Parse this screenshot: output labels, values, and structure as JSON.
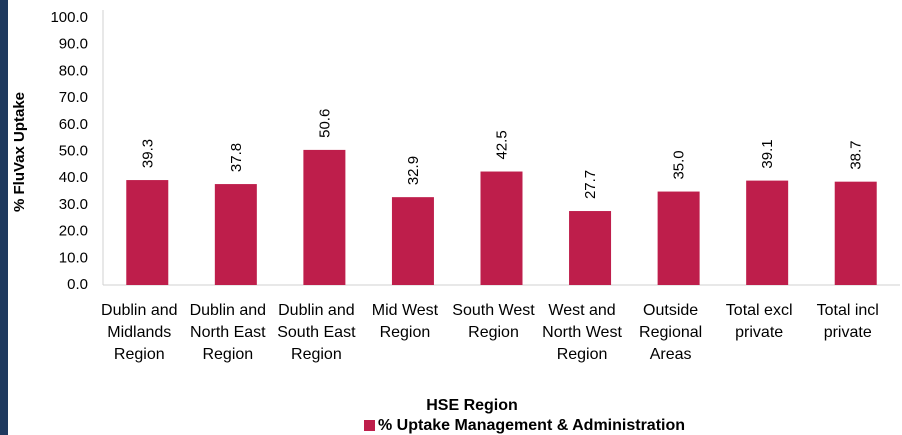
{
  "chart_data": {
    "type": "bar",
    "categories": [
      "Dublin and Midlands Region",
      "Dublin and North East Region",
      "Dublin and South East Region",
      "Mid West Region",
      "South West Region",
      "West and North West Region",
      "Outside Regional Areas",
      "Total excl private",
      "Total incl private"
    ],
    "series": [
      {
        "name": "% Uptake Management & Administration",
        "color": "#be1e4b",
        "values": [
          39.3,
          37.8,
          50.6,
          32.9,
          42.5,
          27.7,
          35.0,
          39.1,
          38.7
        ],
        "value_labels": [
          "39.3",
          "37.8",
          "50.6",
          "32.9",
          "42.5",
          "27.7",
          "35.0",
          "39.1",
          "38.7"
        ]
      }
    ],
    "xlabel": "HSE Region",
    "ylabel": "% FluVax Uptake",
    "ylim": [
      0,
      100
    ],
    "yticks": [
      {
        "value": 0,
        "label": "0.0"
      },
      {
        "value": 10,
        "label": "10.0"
      },
      {
        "value": 20,
        "label": "20.0"
      },
      {
        "value": 30,
        "label": "30.0"
      },
      {
        "value": 40,
        "label": "40.0"
      },
      {
        "value": 50,
        "label": "50.0"
      },
      {
        "value": 60,
        "label": "60.0"
      },
      {
        "value": 70,
        "label": "70.0"
      },
      {
        "value": 80,
        "label": "80.0"
      },
      {
        "value": 90,
        "label": "90.0"
      },
      {
        "value": 100,
        "label": "100.0"
      }
    ],
    "grid": false,
    "legend": "bottom"
  }
}
